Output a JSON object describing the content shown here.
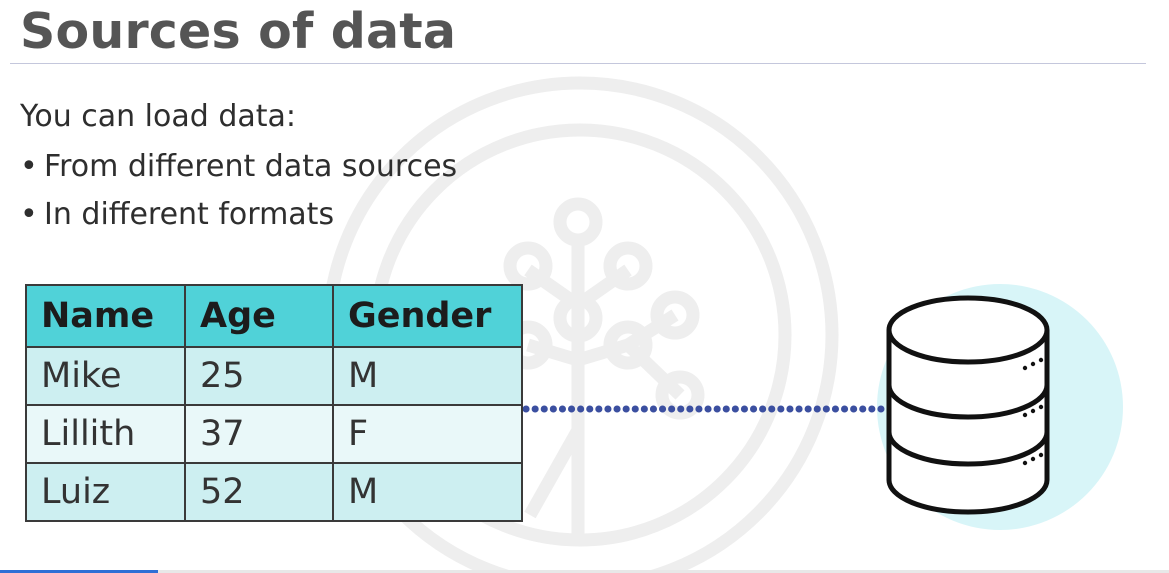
{
  "slide": {
    "title": "Sources of data",
    "intro": "You can load data:",
    "bullets": [
      "From different data sources",
      "In different formats"
    ]
  },
  "table": {
    "headers": [
      "Name",
      "Age",
      "Gender"
    ],
    "rows": [
      [
        "Mike",
        "25",
        "M"
      ],
      [
        "Lillith",
        "37",
        "F"
      ],
      [
        "Luiz",
        "52",
        "M"
      ]
    ]
  },
  "icons": {
    "watermark": "tree-logo-icon",
    "database": "database-icon"
  },
  "colors": {
    "header_fill": "#50d2d8",
    "row_fill_odd": "#cdeff1",
    "row_fill_even": "#e9f8f9",
    "connector": "#3b4fa0",
    "db_circle": "#d8f5f8",
    "title": "#555555"
  },
  "progress": {
    "fraction": 0.135
  }
}
